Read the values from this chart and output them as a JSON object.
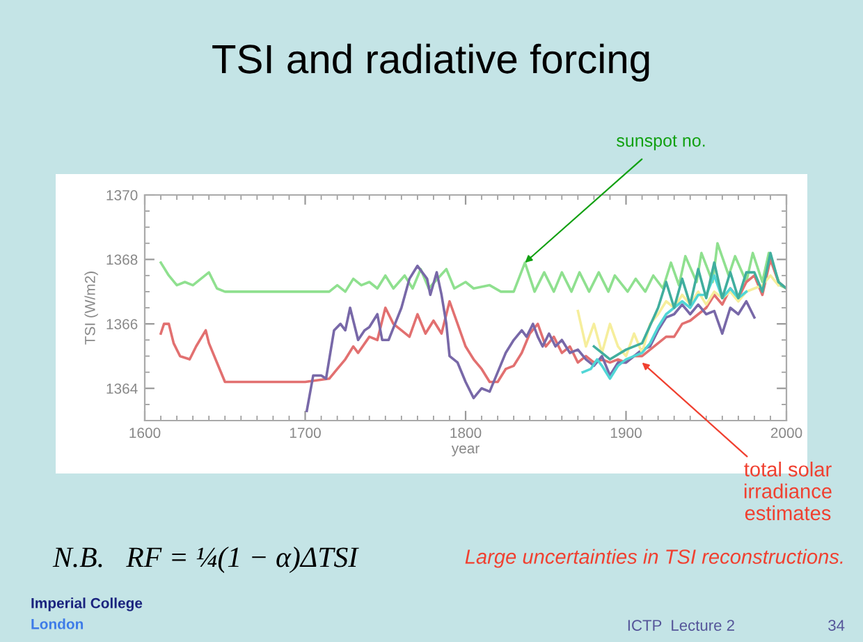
{
  "chart_data": {
    "type": "line",
    "title": "TSI and radiative forcing",
    "xlabel": "year",
    "ylabel": "TSI (W/m2)",
    "xlim": [
      1600,
      2000
    ],
    "xticks": [
      1600,
      1700,
      1800,
      1900,
      2000
    ],
    "ylim": [
      1363,
      1370
    ],
    "yticks": [
      1364,
      1366,
      1368,
      1370
    ],
    "grid": false,
    "legend": false,
    "marker": "none",
    "line_style": "solid",
    "series": [
      {
        "color": "#8fe08f",
        "x": [
          1610,
          1615,
          1620,
          1625,
          1630,
          1640,
          1645,
          1650,
          1715,
          1720,
          1725,
          1730,
          1735,
          1740,
          1745,
          1750,
          1755,
          1762,
          1767,
          1772,
          1777,
          1788,
          1793,
          1800,
          1805,
          1815,
          1822,
          1830,
          1837,
          1843,
          1849,
          1855,
          1860,
          1866,
          1871,
          1877,
          1883,
          1889,
          1893,
          1901,
          1906,
          1912,
          1917,
          1923,
          1928,
          1933,
          1937,
          1944,
          1947,
          1954,
          1957,
          1964,
          1968,
          1975,
          1979,
          1985,
          1989,
          1996,
          2000
        ],
        "values": [
          1367.9,
          1367.5,
          1367.2,
          1367.3,
          1367.2,
          1367.6,
          1367.1,
          1367.0,
          1367.0,
          1367.2,
          1367.0,
          1367.4,
          1367.2,
          1367.3,
          1367.1,
          1367.5,
          1367.1,
          1367.5,
          1367.1,
          1367.7,
          1367.1,
          1367.7,
          1367.1,
          1367.3,
          1367.1,
          1367.2,
          1367.0,
          1367.0,
          1367.9,
          1367.0,
          1367.6,
          1367.0,
          1367.6,
          1367.0,
          1367.6,
          1367.0,
          1367.6,
          1367.0,
          1367.5,
          1367.0,
          1367.4,
          1367.0,
          1367.5,
          1367.1,
          1367.9,
          1367.2,
          1368.1,
          1367.3,
          1368.2,
          1367.3,
          1368.5,
          1367.5,
          1368.1,
          1367.3,
          1368.2,
          1367.3,
          1368.2,
          1367.2,
          1367.1
        ]
      },
      {
        "color": "#e27070",
        "x": [
          1610,
          1612,
          1615,
          1618,
          1622,
          1628,
          1632,
          1638,
          1640,
          1645,
          1650,
          1700,
          1715,
          1720,
          1725,
          1730,
          1733,
          1740,
          1745,
          1750,
          1755,
          1760,
          1765,
          1770,
          1775,
          1780,
          1785,
          1790,
          1795,
          1800,
          1805,
          1810,
          1815,
          1820,
          1825,
          1830,
          1835,
          1840,
          1845,
          1850,
          1855,
          1860,
          1865,
          1870,
          1875,
          1880,
          1885,
          1890,
          1895,
          1900,
          1905,
          1910,
          1915,
          1920,
          1925,
          1930,
          1935,
          1940,
          1945,
          1950,
          1955,
          1960,
          1965,
          1970,
          1975,
          1980,
          1985,
          1990,
          1995,
          2000
        ],
        "values": [
          1365.7,
          1366.0,
          1366.0,
          1365.4,
          1365.0,
          1364.9,
          1365.3,
          1365.8,
          1365.4,
          1364.8,
          1364.2,
          1364.2,
          1364.3,
          1364.6,
          1364.9,
          1365.3,
          1365.1,
          1365.6,
          1365.5,
          1366.5,
          1366.0,
          1365.8,
          1365.6,
          1366.3,
          1365.7,
          1366.1,
          1365.7,
          1366.7,
          1366.0,
          1365.3,
          1364.9,
          1364.6,
          1364.2,
          1364.2,
          1364.6,
          1364.7,
          1365.1,
          1365.7,
          1366.0,
          1365.3,
          1365.6,
          1365.1,
          1365.3,
          1364.8,
          1365.0,
          1364.8,
          1364.9,
          1364.8,
          1364.9,
          1364.8,
          1365.0,
          1365.0,
          1365.2,
          1365.4,
          1365.6,
          1365.6,
          1366.0,
          1366.1,
          1366.3,
          1366.5,
          1366.9,
          1366.6,
          1367.1,
          1366.8,
          1367.3,
          1367.5,
          1366.9,
          1368.0,
          1367.3,
          1367.1
        ]
      },
      {
        "color": "#7868a8",
        "x": [
          1701,
          1705,
          1710,
          1713,
          1718,
          1722,
          1725,
          1728,
          1733,
          1737,
          1740,
          1745,
          1748,
          1752,
          1756,
          1760,
          1765,
          1770,
          1773,
          1776,
          1778,
          1782,
          1785,
          1788,
          1790,
          1795,
          1800,
          1805,
          1810,
          1815,
          1820,
          1825,
          1830,
          1835,
          1838,
          1842,
          1845,
          1848,
          1852,
          1856,
          1860,
          1865,
          1870,
          1875,
          1880,
          1885,
          1890,
          1895,
          1900,
          1905,
          1910,
          1915,
          1920,
          1925,
          1930,
          1935,
          1940,
          1945,
          1950,
          1955,
          1960,
          1965,
          1970,
          1975,
          1980
        ],
        "values": [
          1363.3,
          1364.4,
          1364.4,
          1364.3,
          1365.8,
          1366.0,
          1365.8,
          1366.5,
          1365.5,
          1365.8,
          1365.9,
          1366.3,
          1365.5,
          1365.5,
          1366.0,
          1366.5,
          1367.4,
          1367.8,
          1367.6,
          1367.4,
          1366.9,
          1367.6,
          1366.9,
          1366.0,
          1365.0,
          1364.8,
          1364.2,
          1363.7,
          1364.0,
          1363.9,
          1364.5,
          1365.1,
          1365.5,
          1365.8,
          1365.6,
          1366.0,
          1365.6,
          1365.3,
          1365.7,
          1365.3,
          1365.5,
          1365.1,
          1365.2,
          1364.9,
          1364.7,
          1365.0,
          1364.4,
          1364.8,
          1364.8,
          1365.0,
          1365.2,
          1365.3,
          1365.8,
          1366.2,
          1366.3,
          1366.6,
          1366.3,
          1366.6,
          1366.3,
          1366.4,
          1365.7,
          1366.5,
          1366.3,
          1366.7,
          1366.2
        ]
      },
      {
        "color": "#f6ee9c",
        "x": [
          1870,
          1875,
          1880,
          1885,
          1890,
          1895,
          1900,
          1905,
          1910,
          1915,
          1920,
          1925,
          1930,
          1935,
          1940,
          1945,
          1950,
          1955,
          1960,
          1965,
          1970,
          1975,
          1980,
          1985,
          1990,
          1995
        ],
        "values": [
          1366.4,
          1365.3,
          1366.0,
          1365.1,
          1366.0,
          1365.3,
          1365.0,
          1365.7,
          1365.1,
          1366.0,
          1366.3,
          1366.7,
          1366.5,
          1366.9,
          1366.6,
          1367.0,
          1366.6,
          1367.0,
          1366.8,
          1367.0,
          1366.7,
          1367.0,
          1367.1,
          1367.2,
          1367.5,
          1367.2
        ]
      },
      {
        "color": "#50d6d6",
        "x": [
          1873,
          1878,
          1882,
          1885,
          1890,
          1895,
          1900,
          1905,
          1910,
          1915,
          1920,
          1925,
          1930,
          1935,
          1940,
          1945,
          1950,
          1955,
          1960,
          1965,
          1970,
          1975
        ],
        "values": [
          1364.5,
          1364.6,
          1364.9,
          1364.7,
          1364.3,
          1364.7,
          1364.9,
          1365.0,
          1365.1,
          1365.4,
          1365.9,
          1366.3,
          1366.5,
          1366.7,
          1366.5,
          1366.9,
          1366.9,
          1367.5,
          1366.8,
          1367.1,
          1366.8,
          1367.0
        ]
      },
      {
        "color": "#40ae9e",
        "x": [
          1880,
          1890,
          1900,
          1910,
          1920,
          1925,
          1930,
          1935,
          1940,
          1945,
          1950,
          1955,
          1960,
          1965,
          1970,
          1975,
          1980,
          1985,
          1990,
          1995,
          2000
        ],
        "values": [
          1365.3,
          1364.9,
          1365.2,
          1365.4,
          1366.5,
          1367.3,
          1366.5,
          1367.4,
          1366.6,
          1367.7,
          1366.8,
          1367.9,
          1366.8,
          1367.6,
          1366.8,
          1367.6,
          1367.6,
          1367.0,
          1368.2,
          1367.3,
          1367.1
        ]
      }
    ],
    "annotations": [
      {
        "text": "sunspot no.",
        "x": 1837,
        "y": 1367.9
      },
      {
        "text": "total solar\nirradiance\nestimates",
        "x": 1910,
        "y": 1364.8
      },
      "N.B.   RF = ¼(1 − α)ΔTSI",
      "Large uncertainties in TSI reconstructions.",
      "Imperial College",
      "London",
      "ICTP  Lecture 2",
      "34"
    ]
  }
}
